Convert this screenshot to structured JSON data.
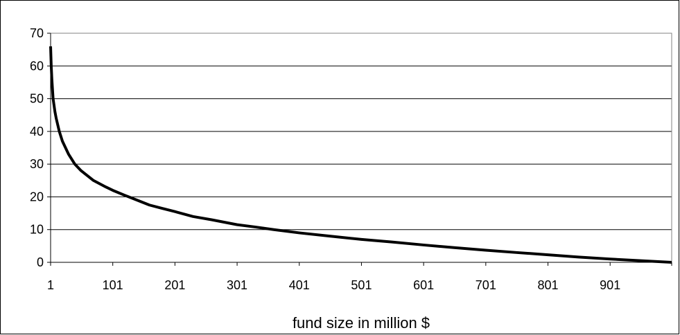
{
  "chart_data": {
    "type": "line",
    "title": "",
    "xlabel": "fund size in million $",
    "ylabel": "",
    "xlim": [
      1,
      1000
    ],
    "ylim": [
      0,
      70
    ],
    "x_ticks": [
      "1",
      "101",
      "201",
      "301",
      "401",
      "501",
      "601",
      "701",
      "801",
      "901"
    ],
    "y_ticks": [
      "0",
      "10",
      "20",
      "30",
      "40",
      "50",
      "60",
      "70"
    ],
    "grid": "horizontal",
    "legend": "none",
    "series": [
      {
        "color": "#000000",
        "x": [
          1,
          2,
          3,
          5,
          8,
          10,
          15,
          20,
          25,
          30,
          40,
          50,
          60,
          70,
          80,
          90,
          101,
          120,
          140,
          160,
          180,
          201,
          230,
          260,
          301,
          330,
          360,
          401,
          450,
          501,
          550,
          601,
          650,
          701,
          750,
          801,
          850,
          901,
          950,
          1000
        ],
        "y": [
          66,
          60,
          56,
          50,
          46,
          44,
          40,
          37,
          35,
          33,
          30,
          28,
          26.5,
          25,
          24,
          23,
          22,
          20.5,
          19,
          17.5,
          16.5,
          15.5,
          14,
          13,
          11.5,
          10.8,
          10,
          9,
          8,
          7,
          6.2,
          5.3,
          4.5,
          3.7,
          3.0,
          2.3,
          1.6,
          1.0,
          0.5,
          0
        ]
      }
    ]
  }
}
